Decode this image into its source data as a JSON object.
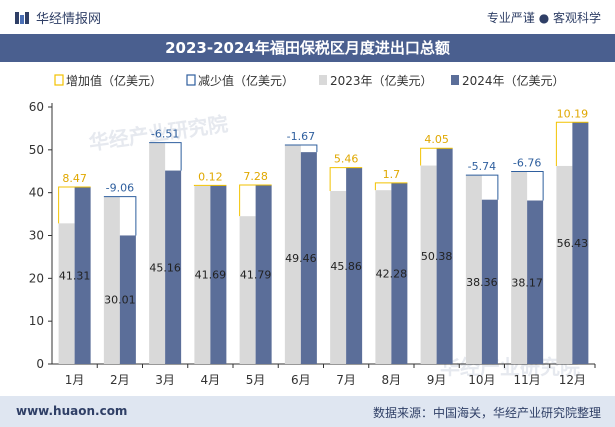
{
  "header": {
    "brand": "华经情报网",
    "tagline": "专业严谨 ● 客观科学",
    "title": "2023-2024年福田保税区月度进出口总额"
  },
  "footer": {
    "url": "www.huaon.com",
    "source": "数据来源：中国海关，华经产业研究院整理"
  },
  "watermark": "华经产业研究院",
  "colors": {
    "title_bg": "#4a5f8f",
    "bar_2023": "#d9d9d9",
    "bar_2024": "#5b6e99",
    "increase": "#f2c200",
    "decrease": "#2f5f9e",
    "footer_bg": "#dfe6f1"
  },
  "chart_data": {
    "type": "bar",
    "categories": [
      "1月",
      "2月",
      "3月",
      "4月",
      "5月",
      "6月",
      "7月",
      "8月",
      "9月",
      "10月",
      "11月",
      "12月"
    ],
    "series": [
      {
        "name": "2023年（亿美元）",
        "values": [
          32.84,
          39.07,
          51.67,
          41.57,
          34.51,
          51.13,
          40.4,
          40.58,
          46.33,
          44.1,
          44.93,
          46.24
        ]
      },
      {
        "name": "2024年（亿美元）",
        "values": [
          41.31,
          30.01,
          45.16,
          41.69,
          41.79,
          49.46,
          45.86,
          42.28,
          50.38,
          38.36,
          38.17,
          56.43
        ]
      }
    ],
    "changes": [
      8.47,
      -9.06,
      -6.51,
      0.12,
      7.28,
      -1.67,
      5.46,
      1.7,
      4.05,
      -5.74,
      -6.76,
      10.19
    ],
    "change_labels": [
      "8.47",
      "-9.06",
      "-6.51",
      "0.12",
      "7.28",
      "-1.67",
      "5.46",
      "1.7",
      "4.05",
      "-5.74",
      "-6.76",
      "10.19"
    ],
    "value_labels_2024": [
      "41.31",
      "30.01",
      "45.16",
      "41.69",
      "41.79",
      "49.46",
      "45.86",
      "42.28",
      "50.38",
      "38.36",
      "38.17",
      "56.43"
    ],
    "legend": [
      "增加值（亿美元）",
      "减少值（亿美元）",
      "2023年（亿美元）",
      "2024年（亿美元）"
    ],
    "legend_position": "top",
    "yticks": [
      "0",
      "10",
      "20",
      "30",
      "40",
      "50",
      "60"
    ],
    "ylim": [
      0,
      60
    ],
    "grid": false
  }
}
